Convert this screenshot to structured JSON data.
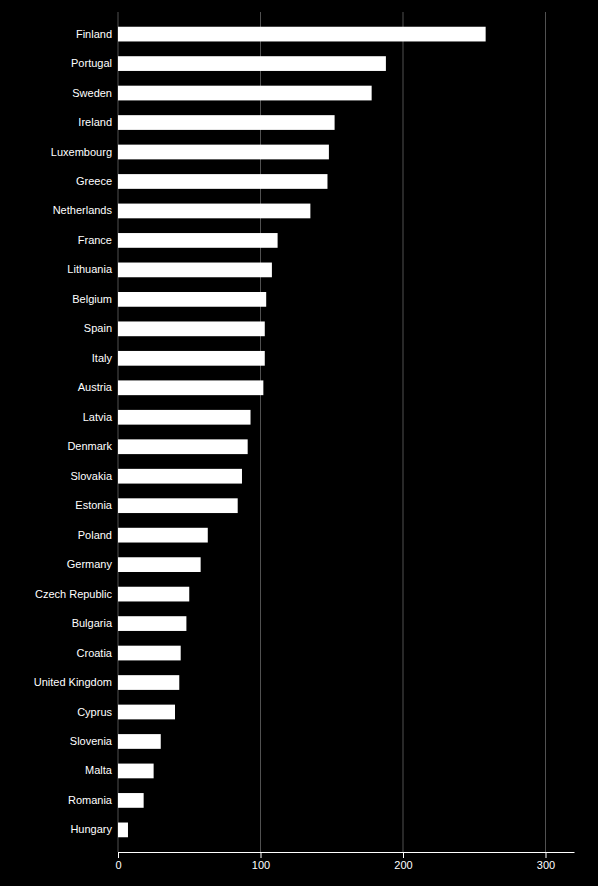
{
  "chart_data": {
    "type": "bar",
    "orientation": "horizontal",
    "categories": [
      "Finland",
      "Portugal",
      "Sweden",
      "Ireland",
      "Luxembourg",
      "Greece",
      "Netherlands",
      "France",
      "Lithuania",
      "Belgium",
      "Spain",
      "Italy",
      "Austria",
      "Latvia",
      "Denmark",
      "Slovakia",
      "Estonia",
      "Poland",
      "Germany",
      "Czech Republic",
      "Bulgaria",
      "Croatia",
      "United Kingdom",
      "Cyprus",
      "Slovenia",
      "Malta",
      "Romania",
      "Hungary"
    ],
    "values": [
      258,
      188,
      178,
      152,
      148,
      147,
      135,
      112,
      108,
      104,
      103,
      103,
      102,
      93,
      91,
      87,
      84,
      63,
      58,
      50,
      48,
      44,
      43,
      40,
      30,
      25,
      18,
      7
    ],
    "color": "#ffffff",
    "xlim": [
      0,
      320
    ],
    "xticks": [
      0,
      100,
      200,
      300
    ],
    "grid": true
  }
}
